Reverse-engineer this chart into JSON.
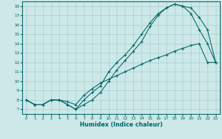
{
  "xlabel": "Humidex (Indice chaleur)",
  "background_color": "#cce8e8",
  "grid_color": "#aacccc",
  "line_color": "#006666",
  "xlim": [
    -0.5,
    23.5
  ],
  "ylim": [
    6.5,
    18.5
  ],
  "xticks": [
    0,
    1,
    2,
    3,
    4,
    5,
    6,
    7,
    8,
    9,
    10,
    11,
    12,
    13,
    14,
    15,
    16,
    17,
    18,
    19,
    20,
    21,
    22,
    23
  ],
  "yticks": [
    7,
    8,
    9,
    10,
    11,
    12,
    13,
    14,
    15,
    16,
    17,
    18
  ],
  "line1_x": [
    0,
    1,
    2,
    3,
    4,
    5,
    6,
    7,
    8,
    9,
    10,
    11,
    12,
    13,
    14,
    15,
    16,
    17,
    18,
    19,
    20,
    21,
    22,
    23
  ],
  "line1_y": [
    8,
    7.5,
    7.5,
    8,
    8,
    7.5,
    7,
    7.5,
    8.0,
    8.8,
    10.0,
    11.2,
    12.2,
    13.2,
    14.2,
    15.8,
    17.0,
    17.8,
    18.2,
    18.0,
    17.2,
    15.5,
    14.0,
    12.0
  ],
  "line2_x": [
    0,
    1,
    2,
    3,
    4,
    5,
    6,
    7,
    8,
    9,
    10,
    11,
    12,
    13,
    14,
    15,
    16,
    17,
    18,
    19,
    20,
    21,
    22,
    23
  ],
  "line2_y": [
    8,
    7.5,
    7.5,
    8,
    8,
    7.5,
    7,
    8.0,
    8.8,
    9.5,
    11.0,
    12.0,
    12.8,
    13.8,
    15.0,
    16.2,
    17.2,
    17.8,
    18.2,
    18.0,
    17.8,
    16.8,
    15.5,
    12.0
  ],
  "line3_x": [
    0,
    1,
    2,
    3,
    4,
    5,
    6,
    7,
    8,
    9,
    10,
    11,
    12,
    13,
    14,
    15,
    16,
    17,
    18,
    19,
    20,
    21,
    22,
    23
  ],
  "line3_y": [
    8,
    7.5,
    7.5,
    8,
    8,
    7.8,
    7.5,
    8.5,
    9.2,
    9.8,
    10.2,
    10.6,
    11.0,
    11.4,
    11.8,
    12.2,
    12.5,
    12.8,
    13.2,
    13.5,
    13.8,
    14.0,
    12.0,
    12.0
  ]
}
